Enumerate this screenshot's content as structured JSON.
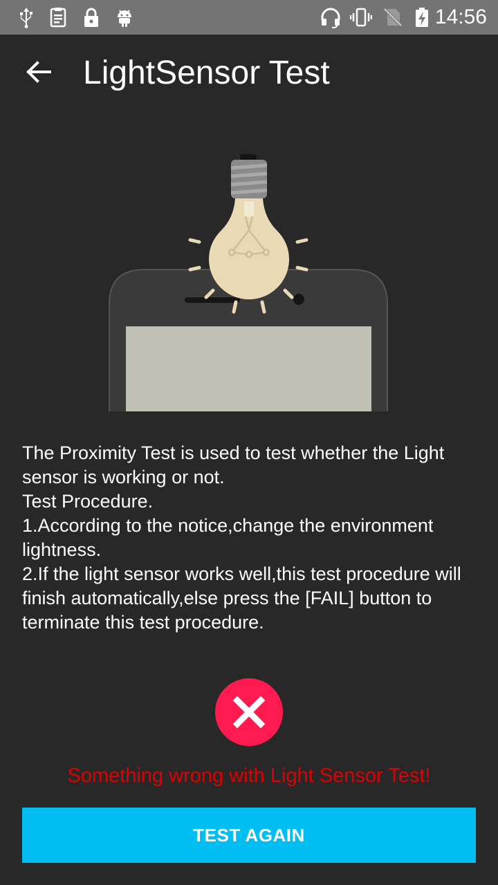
{
  "status_bar": {
    "time": "14:56",
    "icons": [
      "usb-icon",
      "debug-log-icon",
      "lock-icon",
      "android-icon",
      "headset-icon",
      "vibrate-icon",
      "no-sim-icon",
      "battery-charging-icon"
    ]
  },
  "app_bar": {
    "title": "LightSensor Test",
    "back_icon": "arrow-left-icon"
  },
  "illustration": {
    "icon": "lightbulb-over-phone-icon",
    "colors": {
      "bulb": "#e9d9b4",
      "phone_body": "#3a3a3a",
      "phone_screen": "#c0c0b4",
      "rays": "#e9d9b4"
    }
  },
  "description": {
    "line1": "The Proximity Test is used to test whether the Light sensor is working or not.",
    "line2": "Test Procedure.",
    "line3": "1.According to the notice,change the environment lightness.",
    "line4": "2.If the light sensor works well,this test procedure will finish automatically,else press the [FAIL] button to terminate this test procedure."
  },
  "result": {
    "icon": "fail-x-icon",
    "color": "#ff1a4f",
    "message": "Something wrong with Light Sensor Test!",
    "message_color": "#e00000"
  },
  "actions": {
    "test_again_label": "TEST AGAIN",
    "button_color": "#00bdf2"
  }
}
